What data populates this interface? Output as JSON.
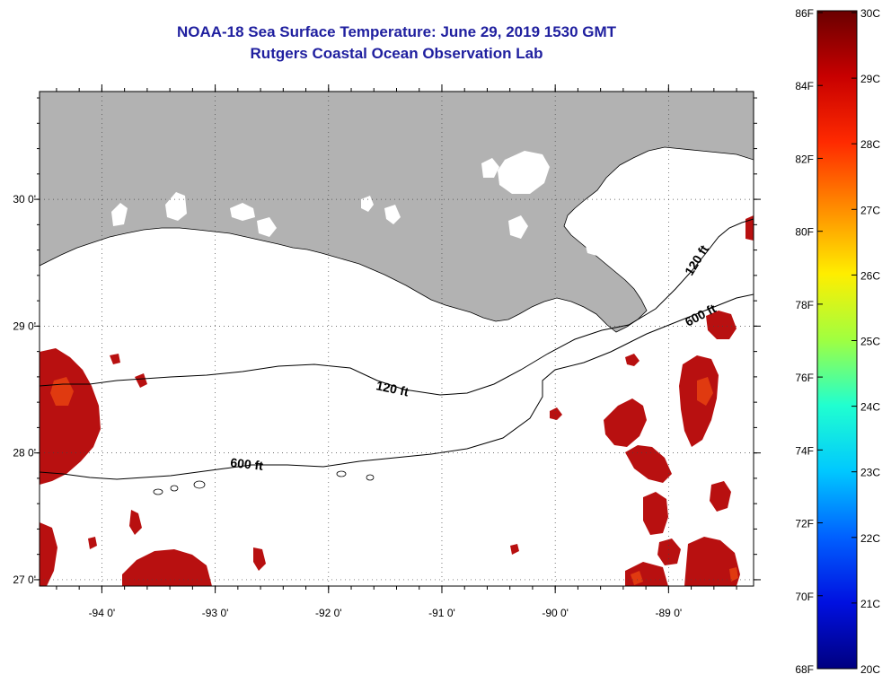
{
  "title": "NOAA-18 Sea Surface Temperature:  June 29, 2019 1530 GMT",
  "subtitle": "Rutgers Coastal Ocean Observation Lab",
  "colors": {
    "land": "#b2b2b2",
    "title": "#1f1f9f",
    "warm_water": "#b81010"
  },
  "map": {
    "lon_range": [
      -94.55,
      -88.25
    ],
    "lat_range": [
      26.95,
      30.85
    ],
    "lon_ticks": [
      {
        "value": -94,
        "label": "-94 0'"
      },
      {
        "value": -93,
        "label": "-93 0'"
      },
      {
        "value": -92,
        "label": "-92 0'"
      },
      {
        "value": -91,
        "label": "-91 0'"
      },
      {
        "value": -90,
        "label": "-90 0'"
      },
      {
        "value": -89,
        "label": "-89 0'"
      }
    ],
    "lat_ticks": [
      {
        "value": 30,
        "label": "30 0'"
      },
      {
        "value": 29,
        "label": "29 0'"
      },
      {
        "value": 28,
        "label": "28 0'"
      },
      {
        "value": 27,
        "label": "27 0'"
      }
    ],
    "contour_labels": [
      "120 ft",
      "600 ft",
      "120 ft",
      "600 ft"
    ]
  },
  "colorbar": {
    "fahrenheit_labels": [
      "86F",
      "84F",
      "82F",
      "80F",
      "78F",
      "76F",
      "74F",
      "72F",
      "70F",
      "68F"
    ],
    "celsius_labels": [
      "30C",
      "29C",
      "28C",
      "27C",
      "26C",
      "25C",
      "24C",
      "23C",
      "22C",
      "21C",
      "20C"
    ]
  }
}
